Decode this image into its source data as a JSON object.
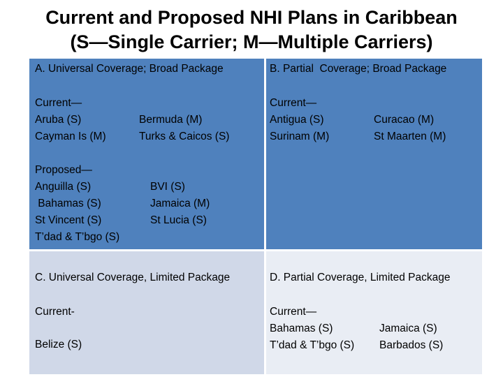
{
  "title": {
    "line1": "Current and Proposed NHI Plans in Caribbean",
    "line2": "(S—Single Carrier; M—Multiple Carriers)"
  },
  "quadrant_a": {
    "heading": "A. Universal Coverage; Broad Package",
    "current_label": "Current—",
    "current_col1": [
      "Aruba (S)",
      "Cayman Is (M)"
    ],
    "current_col2": [
      "Bermuda (M)",
      "Turks & Caicos  (S)"
    ],
    "proposed_label": "Proposed—",
    "proposed_col1": [
      "Anguilla (S)",
      " Bahamas (S)",
      "St Vincent (S)",
      "T’dad & T’bgo (S)"
    ],
    "proposed_col2": [
      "BVI (S)",
      "Jamaica (M)",
      "St Lucia (S)"
    ]
  },
  "quadrant_b": {
    "heading": "B. Partial  Coverage; Broad Package",
    "current_label": "Current—",
    "col1": [
      "Antigua (S)",
      "Surinam (M)"
    ],
    "col2": [
      "Curacao (M)",
      "St Maarten (M)"
    ]
  },
  "quadrant_c": {
    "heading": "C. Universal Coverage, Limited Package",
    "current_label": "Current-",
    "item": "Belize (S)"
  },
  "quadrant_d": {
    "heading": "D. Partial Coverage, Limited Package",
    "current_label": "Current—",
    "col1": [
      "Bahamas (S)",
      "T’dad & T’bgo (S)"
    ],
    "col2": [
      "Jamaica (S)",
      "Barbados (S)"
    ]
  }
}
